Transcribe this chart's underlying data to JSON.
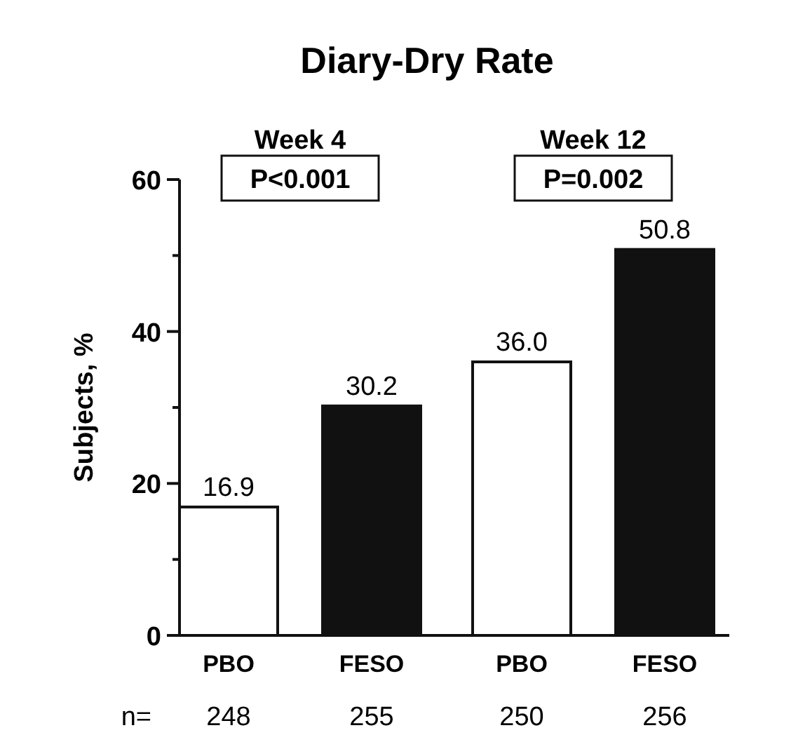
{
  "chart_data": {
    "type": "bar",
    "title": "Diary-Dry Rate",
    "ylabel": "Subjects, %",
    "categories": [
      "PBO",
      "FESO",
      "PBO",
      "FESO"
    ],
    "values": [
      16.9,
      30.2,
      36.0,
      50.8
    ],
    "colors": [
      "#ffffff",
      "#111111",
      "#ffffff",
      "#111111"
    ],
    "value_labels": [
      "16.9",
      "30.2",
      "36.0",
      "50.8"
    ],
    "ylim": [
      0,
      60
    ],
    "yticks": [
      0,
      {
        "value": 10,
        "label": null
      },
      20,
      {
        "value": 30,
        "label": null
      },
      40,
      {
        "value": 50,
        "label": null
      },
      60
    ],
    "annotations": [
      "Week 4",
      "P<0.001",
      "Week 12",
      "P=0.002",
      "n=",
      "248",
      "255",
      "250",
      "256"
    ]
  }
}
